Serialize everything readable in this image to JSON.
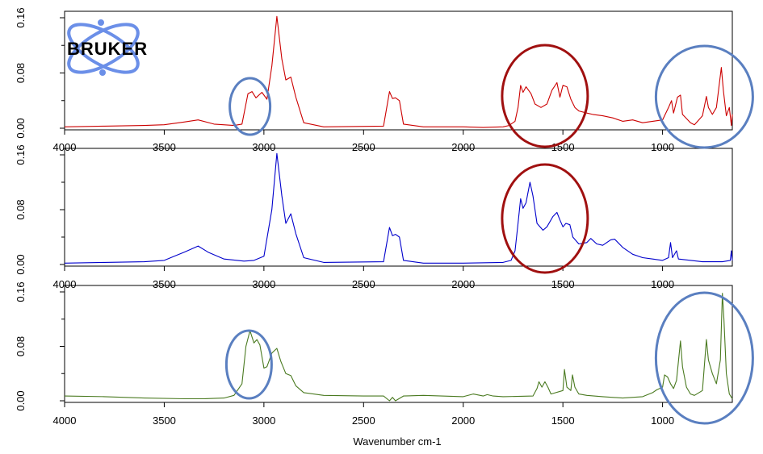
{
  "logo": {
    "text": "BRUKER",
    "ring_color": "#6b8fe8"
  },
  "chart_data": {
    "type": "line",
    "xlabel": "Wavenumber cm-1",
    "xlim": [
      4000,
      650
    ],
    "x_ticks": [
      4000,
      3500,
      3000,
      2500,
      2000,
      1500,
      1000
    ],
    "y_ticks": [
      "0.00",
      "0.08",
      "0.16"
    ],
    "panels": [
      {
        "color": "#cc0000",
        "ylim": [
          0,
          0.16
        ],
        "points": [
          [
            4000,
            0.002
          ],
          [
            3800,
            0.003
          ],
          [
            3600,
            0.004
          ],
          [
            3500,
            0.005
          ],
          [
            3400,
            0.009
          ],
          [
            3330,
            0.012
          ],
          [
            3250,
            0.006
          ],
          [
            3150,
            0.004
          ],
          [
            3110,
            0.006
          ],
          [
            3080,
            0.05
          ],
          [
            3060,
            0.053
          ],
          [
            3040,
            0.044
          ],
          [
            3010,
            0.052
          ],
          [
            2985,
            0.042
          ],
          [
            2960,
            0.09
          ],
          [
            2935,
            0.162
          ],
          [
            2910,
            0.1
          ],
          [
            2890,
            0.07
          ],
          [
            2865,
            0.074
          ],
          [
            2840,
            0.045
          ],
          [
            2800,
            0.008
          ],
          [
            2700,
            0.002
          ],
          [
            2400,
            0.003
          ],
          [
            2370,
            0.053
          ],
          [
            2355,
            0.043
          ],
          [
            2340,
            0.044
          ],
          [
            2320,
            0.04
          ],
          [
            2300,
            0.006
          ],
          [
            2200,
            0.002
          ],
          [
            2000,
            0.002
          ],
          [
            1900,
            0.001
          ],
          [
            1800,
            0.002
          ],
          [
            1770,
            0.004
          ],
          [
            1740,
            0.01
          ],
          [
            1725,
            0.03
          ],
          [
            1712,
            0.062
          ],
          [
            1700,
            0.052
          ],
          [
            1685,
            0.06
          ],
          [
            1660,
            0.05
          ],
          [
            1640,
            0.035
          ],
          [
            1610,
            0.03
          ],
          [
            1580,
            0.035
          ],
          [
            1555,
            0.055
          ],
          [
            1530,
            0.066
          ],
          [
            1515,
            0.045
          ],
          [
            1500,
            0.062
          ],
          [
            1480,
            0.06
          ],
          [
            1460,
            0.042
          ],
          [
            1440,
            0.03
          ],
          [
            1420,
            0.025
          ],
          [
            1380,
            0.022
          ],
          [
            1350,
            0.02
          ],
          [
            1300,
            0.018
          ],
          [
            1250,
            0.015
          ],
          [
            1200,
            0.01
          ],
          [
            1150,
            0.012
          ],
          [
            1100,
            0.008
          ],
          [
            1050,
            0.01
          ],
          [
            1000,
            0.012
          ],
          [
            970,
            0.03
          ],
          [
            955,
            0.04
          ],
          [
            945,
            0.022
          ],
          [
            925,
            0.045
          ],
          [
            910,
            0.048
          ],
          [
            900,
            0.02
          ],
          [
            860,
            0.008
          ],
          [
            840,
            0.005
          ],
          [
            800,
            0.018
          ],
          [
            780,
            0.046
          ],
          [
            770,
            0.03
          ],
          [
            750,
            0.02
          ],
          [
            730,
            0.03
          ],
          [
            705,
            0.088
          ],
          [
            695,
            0.055
          ],
          [
            680,
            0.018
          ],
          [
            665,
            0.03
          ],
          [
            655,
            0.004
          ],
          [
            650,
            0.02
          ]
        ]
      },
      {
        "color": "#0000cc",
        "ylim": [
          0,
          0.16
        ],
        "points": [
          [
            4000,
            0.002
          ],
          [
            3800,
            0.003
          ],
          [
            3600,
            0.004
          ],
          [
            3500,
            0.006
          ],
          [
            3450,
            0.012
          ],
          [
            3400,
            0.018
          ],
          [
            3330,
            0.027
          ],
          [
            3280,
            0.018
          ],
          [
            3200,
            0.008
          ],
          [
            3100,
            0.005
          ],
          [
            3050,
            0.006
          ],
          [
            3000,
            0.012
          ],
          [
            2960,
            0.08
          ],
          [
            2935,
            0.162
          ],
          [
            2910,
            0.1
          ],
          [
            2890,
            0.06
          ],
          [
            2865,
            0.074
          ],
          [
            2840,
            0.045
          ],
          [
            2800,
            0.01
          ],
          [
            2700,
            0.003
          ],
          [
            2400,
            0.004
          ],
          [
            2370,
            0.054
          ],
          [
            2355,
            0.042
          ],
          [
            2340,
            0.044
          ],
          [
            2320,
            0.04
          ],
          [
            2300,
            0.006
          ],
          [
            2200,
            0.002
          ],
          [
            2000,
            0.002
          ],
          [
            1800,
            0.003
          ],
          [
            1760,
            0.006
          ],
          [
            1740,
            0.02
          ],
          [
            1725,
            0.06
          ],
          [
            1712,
            0.096
          ],
          [
            1700,
            0.082
          ],
          [
            1685,
            0.09
          ],
          [
            1665,
            0.12
          ],
          [
            1650,
            0.1
          ],
          [
            1630,
            0.06
          ],
          [
            1600,
            0.05
          ],
          [
            1580,
            0.055
          ],
          [
            1550,
            0.07
          ],
          [
            1530,
            0.076
          ],
          [
            1515,
            0.065
          ],
          [
            1500,
            0.055
          ],
          [
            1485,
            0.06
          ],
          [
            1465,
            0.058
          ],
          [
            1450,
            0.04
          ],
          [
            1420,
            0.03
          ],
          [
            1380,
            0.032
          ],
          [
            1360,
            0.038
          ],
          [
            1330,
            0.03
          ],
          [
            1300,
            0.028
          ],
          [
            1260,
            0.036
          ],
          [
            1240,
            0.037
          ],
          [
            1200,
            0.025
          ],
          [
            1150,
            0.015
          ],
          [
            1100,
            0.01
          ],
          [
            1050,
            0.008
          ],
          [
            1000,
            0.006
          ],
          [
            970,
            0.01
          ],
          [
            960,
            0.032
          ],
          [
            950,
            0.01
          ],
          [
            930,
            0.02
          ],
          [
            920,
            0.008
          ],
          [
            800,
            0.004
          ],
          [
            700,
            0.004
          ],
          [
            660,
            0.006
          ],
          [
            655,
            0.02
          ],
          [
            650,
            0.006
          ]
        ]
      },
      {
        "color": "#4a7a20",
        "ylim": [
          0,
          0.16
        ],
        "points": [
          [
            4000,
            0.007
          ],
          [
            3800,
            0.006
          ],
          [
            3600,
            0.004
          ],
          [
            3400,
            0.003
          ],
          [
            3300,
            0.003
          ],
          [
            3200,
            0.004
          ],
          [
            3150,
            0.008
          ],
          [
            3110,
            0.025
          ],
          [
            3090,
            0.08
          ],
          [
            3070,
            0.103
          ],
          [
            3050,
            0.085
          ],
          [
            3035,
            0.09
          ],
          [
            3020,
            0.082
          ],
          [
            3000,
            0.048
          ],
          [
            2985,
            0.05
          ],
          [
            2960,
            0.07
          ],
          [
            2935,
            0.077
          ],
          [
            2915,
            0.058
          ],
          [
            2890,
            0.04
          ],
          [
            2865,
            0.037
          ],
          [
            2840,
            0.022
          ],
          [
            2800,
            0.012
          ],
          [
            2700,
            0.008
          ],
          [
            2500,
            0.007
          ],
          [
            2400,
            0.007
          ],
          [
            2370,
            0.0
          ],
          [
            2355,
            0.005
          ],
          [
            2340,
            0.0
          ],
          [
            2300,
            0.007
          ],
          [
            2200,
            0.008
          ],
          [
            2000,
            0.006
          ],
          [
            1950,
            0.01
          ],
          [
            1900,
            0.007
          ],
          [
            1880,
            0.009
          ],
          [
            1850,
            0.007
          ],
          [
            1800,
            0.006
          ],
          [
            1650,
            0.007
          ],
          [
            1630,
            0.018
          ],
          [
            1620,
            0.028
          ],
          [
            1605,
            0.02
          ],
          [
            1590,
            0.028
          ],
          [
            1575,
            0.02
          ],
          [
            1560,
            0.01
          ],
          [
            1500,
            0.015
          ],
          [
            1492,
            0.046
          ],
          [
            1480,
            0.02
          ],
          [
            1460,
            0.015
          ],
          [
            1452,
            0.038
          ],
          [
            1440,
            0.02
          ],
          [
            1420,
            0.01
          ],
          [
            1380,
            0.008
          ],
          [
            1300,
            0.006
          ],
          [
            1200,
            0.004
          ],
          [
            1100,
            0.006
          ],
          [
            1050,
            0.012
          ],
          [
            1030,
            0.016
          ],
          [
            1000,
            0.02
          ],
          [
            990,
            0.038
          ],
          [
            975,
            0.035
          ],
          [
            960,
            0.025
          ],
          [
            945,
            0.018
          ],
          [
            930,
            0.03
          ],
          [
            910,
            0.088
          ],
          [
            900,
            0.05
          ],
          [
            880,
            0.02
          ],
          [
            860,
            0.01
          ],
          [
            840,
            0.008
          ],
          [
            800,
            0.015
          ],
          [
            780,
            0.09
          ],
          [
            770,
            0.06
          ],
          [
            750,
            0.04
          ],
          [
            730,
            0.025
          ],
          [
            710,
            0.06
          ],
          [
            700,
            0.158
          ],
          [
            692,
            0.12
          ],
          [
            680,
            0.04
          ],
          [
            665,
            0.01
          ],
          [
            650,
            0.003
          ]
        ]
      }
    ]
  },
  "annotations": {
    "blue_ring_color": "#5a7fc0",
    "red_ring_color": "#a01010"
  }
}
